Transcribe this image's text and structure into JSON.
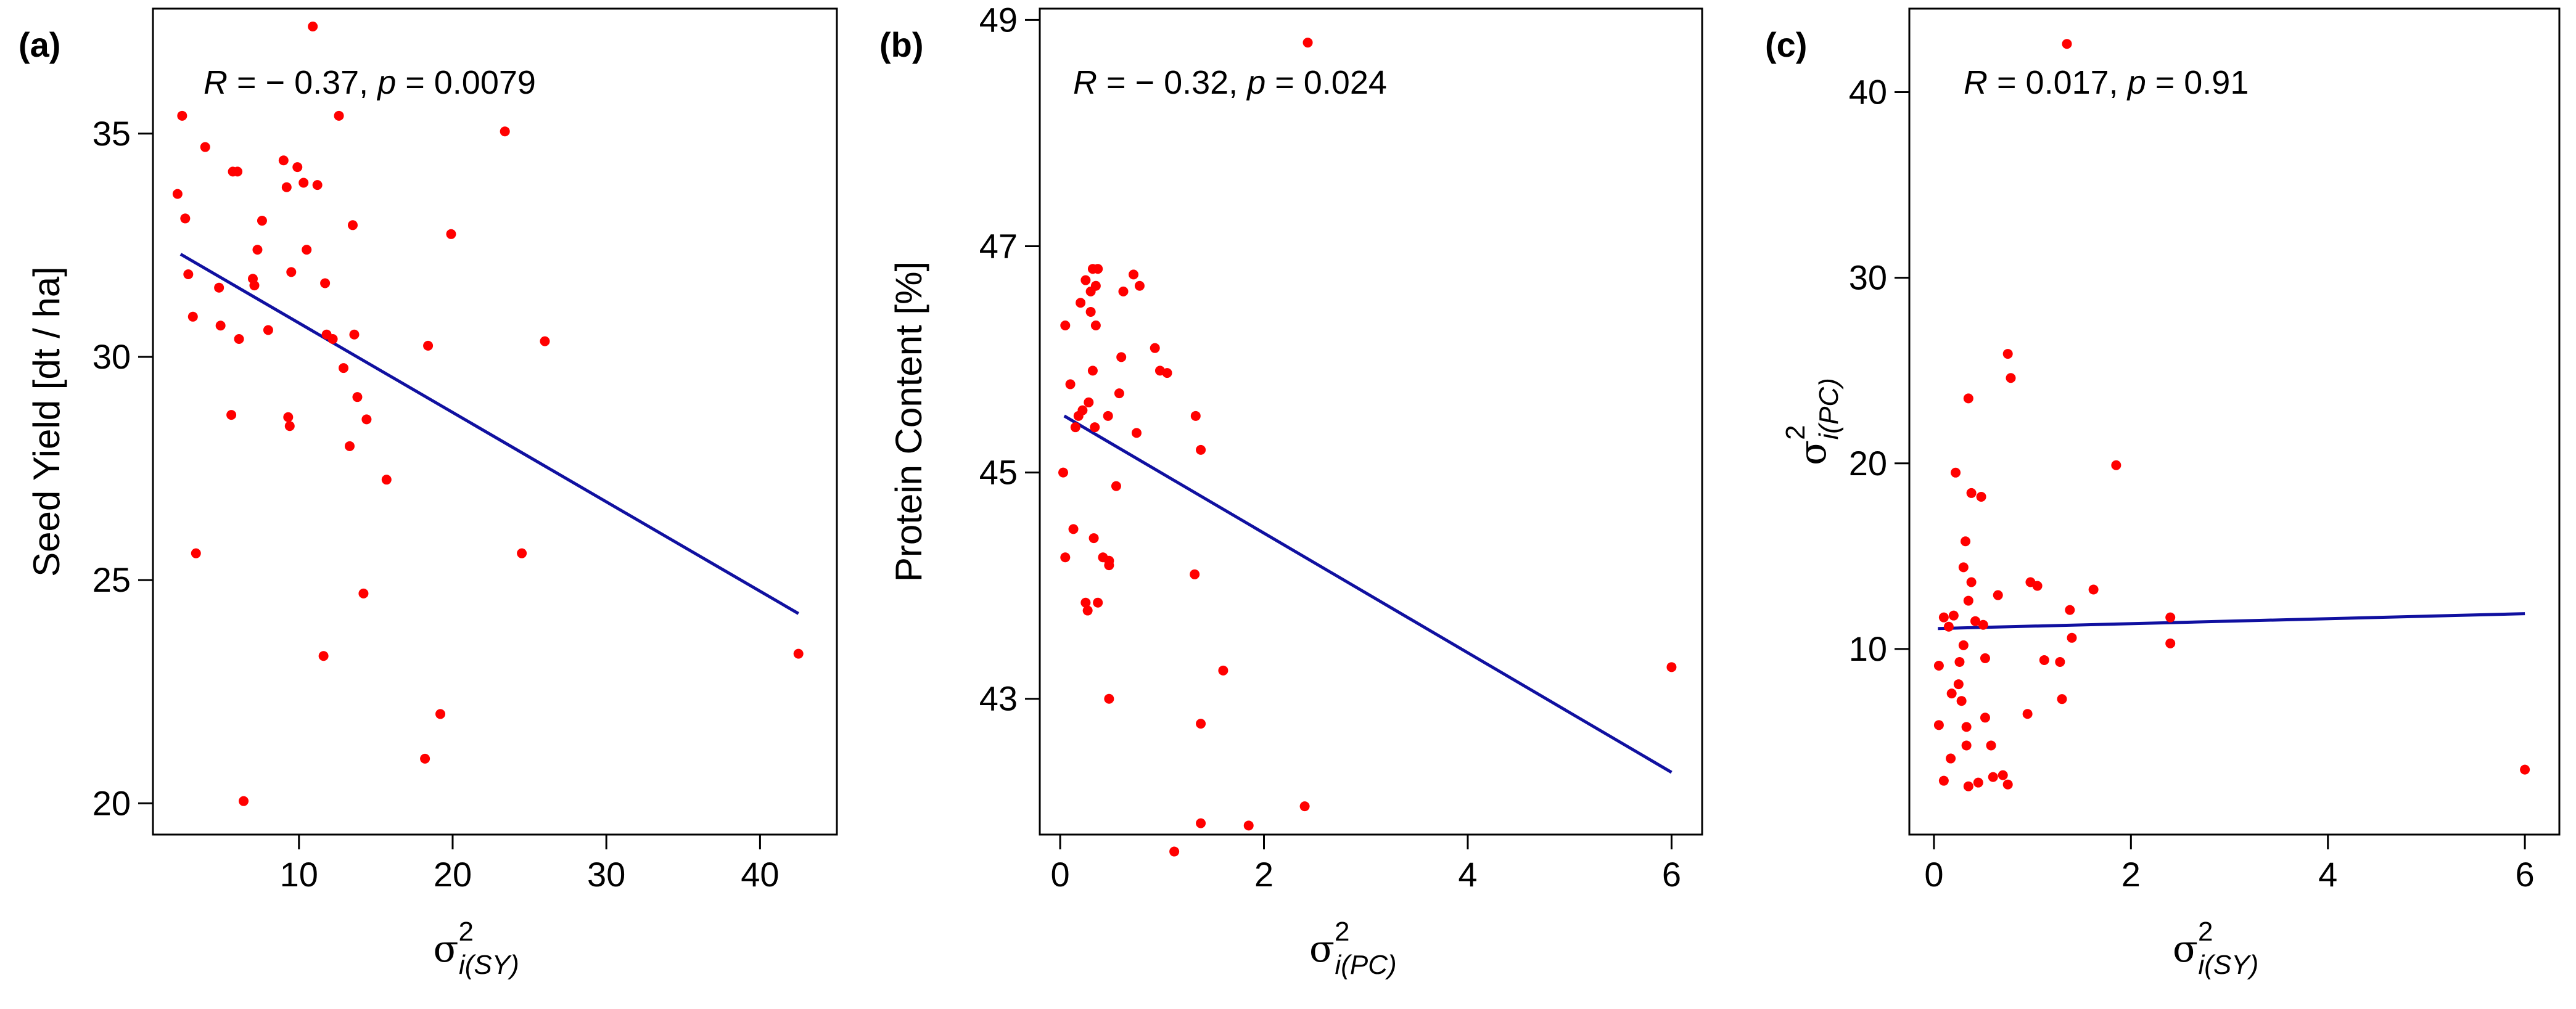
{
  "chart_data": [
    {
      "type": "scatter",
      "panel_label": "(a)",
      "xlabel": {
        "symbol": "σ",
        "sup": "2",
        "sub": "i(SY)"
      },
      "ylabel": {
        "text": "Seed Yield [dt / ha]"
      },
      "xlim": [
        0.5,
        45
      ],
      "ylim": [
        19.3,
        37.8
      ],
      "xticks": [
        10,
        20,
        30,
        40
      ],
      "yticks": [
        20,
        25,
        30,
        35
      ],
      "point_color": "#ff0000",
      "line_color": "#1010a0",
      "annotation": {
        "r_label": "R",
        "r_value": " = − 0.37, ",
        "p_label": "p",
        "p_value": " = 0.0079"
      },
      "regression": {
        "x": [
          2.3,
          42.5
        ],
        "y": [
          32.3,
          24.25
        ]
      },
      "points": [
        [
          2.1,
          33.65
        ],
        [
          2.4,
          35.4
        ],
        [
          2.6,
          33.1
        ],
        [
          2.8,
          31.85
        ],
        [
          3.1,
          30.9
        ],
        [
          3.3,
          25.6
        ],
        [
          3.9,
          34.7
        ],
        [
          4.8,
          31.55
        ],
        [
          4.9,
          30.7
        ],
        [
          5.6,
          28.7
        ],
        [
          5.7,
          34.15
        ],
        [
          6.0,
          34.15
        ],
        [
          6.1,
          30.4
        ],
        [
          6.4,
          20.05
        ],
        [
          7.0,
          31.75
        ],
        [
          7.1,
          31.6
        ],
        [
          7.3,
          32.4
        ],
        [
          7.6,
          33.05
        ],
        [
          8.0,
          30.6
        ],
        [
          9.0,
          34.4
        ],
        [
          9.2,
          33.8
        ],
        [
          9.3,
          28.65
        ],
        [
          9.4,
          28.45
        ],
        [
          9.5,
          31.9
        ],
        [
          9.9,
          34.25
        ],
        [
          10.3,
          33.9
        ],
        [
          10.5,
          32.4
        ],
        [
          10.9,
          37.4
        ],
        [
          11.2,
          33.85
        ],
        [
          11.6,
          23.3
        ],
        [
          11.7,
          31.65
        ],
        [
          11.8,
          30.5
        ],
        [
          12.2,
          30.4
        ],
        [
          12.6,
          35.4
        ],
        [
          12.9,
          29.75
        ],
        [
          13.3,
          28.0
        ],
        [
          13.5,
          32.95
        ],
        [
          13.6,
          30.5
        ],
        [
          13.8,
          29.1
        ],
        [
          14.2,
          24.7
        ],
        [
          14.4,
          28.6
        ],
        [
          15.7,
          27.25
        ],
        [
          18.2,
          21.0
        ],
        [
          18.4,
          30.25
        ],
        [
          19.2,
          22.0
        ],
        [
          19.9,
          32.75
        ],
        [
          23.4,
          35.05
        ],
        [
          24.5,
          25.6
        ],
        [
          26.0,
          30.35
        ],
        [
          42.5,
          23.35
        ]
      ]
    },
    {
      "type": "scatter",
      "panel_label": "(b)",
      "xlabel": {
        "symbol": "σ",
        "sup": "2",
        "sub": "i(PC)"
      },
      "ylabel": {
        "text": "Protein Content [%]"
      },
      "xlim": [
        -0.2,
        6.3
      ],
      "ylim": [
        41.8,
        49.1
      ],
      "xticks": [
        0,
        2,
        4,
        6
      ],
      "yticks": [
        43,
        45,
        47,
        49
      ],
      "point_color": "#ff0000",
      "line_color": "#1010a0",
      "annotation": {
        "r_label": "R",
        "r_value": " = − 0.32, ",
        "p_label": "p",
        "p_value": " = 0.024"
      },
      "regression": {
        "x": [
          0.04,
          6.0
        ],
        "y": [
          45.5,
          42.35
        ]
      },
      "points": [
        [
          0.03,
          45.0
        ],
        [
          0.05,
          44.25
        ],
        [
          0.05,
          46.3
        ],
        [
          0.1,
          45.78
        ],
        [
          0.13,
          44.5
        ],
        [
          0.15,
          45.4
        ],
        [
          0.18,
          45.5
        ],
        [
          0.2,
          46.5
        ],
        [
          0.22,
          45.55
        ],
        [
          0.25,
          46.7
        ],
        [
          0.25,
          43.85
        ],
        [
          0.27,
          43.78
        ],
        [
          0.28,
          45.62
        ],
        [
          0.3,
          46.42
        ],
        [
          0.3,
          46.6
        ],
        [
          0.32,
          46.8
        ],
        [
          0.32,
          45.9
        ],
        [
          0.33,
          44.42
        ],
        [
          0.34,
          45.4
        ],
        [
          0.35,
          46.65
        ],
        [
          0.35,
          46.3
        ],
        [
          0.37,
          46.8
        ],
        [
          0.37,
          43.85
        ],
        [
          0.42,
          44.25
        ],
        [
          0.47,
          45.5
        ],
        [
          0.48,
          44.18
        ],
        [
          0.48,
          44.22
        ],
        [
          0.48,
          43.0
        ],
        [
          0.55,
          44.88
        ],
        [
          0.58,
          45.7
        ],
        [
          0.6,
          46.02
        ],
        [
          0.62,
          46.6
        ],
        [
          0.72,
          46.75
        ],
        [
          0.75,
          45.35
        ],
        [
          0.78,
          46.65
        ],
        [
          0.93,
          46.1
        ],
        [
          0.98,
          45.9
        ],
        [
          1.05,
          45.88
        ],
        [
          1.12,
          41.65
        ],
        [
          1.32,
          44.1
        ],
        [
          1.33,
          45.5
        ],
        [
          1.38,
          45.2
        ],
        [
          1.38,
          42.78
        ],
        [
          1.38,
          41.9
        ],
        [
          1.6,
          43.25
        ],
        [
          1.85,
          41.88
        ],
        [
          2.4,
          42.05
        ],
        [
          2.43,
          48.8
        ],
        [
          6.0,
          43.28
        ]
      ]
    },
    {
      "type": "scatter",
      "panel_label": "(c)",
      "xlabel": {
        "symbol": "σ",
        "sup": "2",
        "sub": "i(SY)"
      },
      "ylabel": {
        "symbol": "σ",
        "sup": "2",
        "sub": "i(PC)"
      },
      "xlim": [
        -0.25,
        6.35
      ],
      "ylim": [
        0,
        44.5
      ],
      "xticks": [
        0,
        2,
        4,
        6
      ],
      "yticks": [
        10,
        20,
        30,
        40
      ],
      "point_color": "#ff0000",
      "line_color": "#1010a0",
      "annotation": {
        "r_label": "R",
        "r_value": " = 0.017, ",
        "p_label": "p",
        "p_value": " = 0.91"
      },
      "regression": {
        "x": [
          0.04,
          6.0
        ],
        "y": [
          11.1,
          11.9
        ]
      },
      "points": [
        [
          0.05,
          9.1
        ],
        [
          0.05,
          5.9
        ],
        [
          0.1,
          11.7
        ],
        [
          0.1,
          2.9
        ],
        [
          0.15,
          11.2
        ],
        [
          0.17,
          4.1
        ],
        [
          0.18,
          7.6
        ],
        [
          0.2,
          11.8
        ],
        [
          0.22,
          19.5
        ],
        [
          0.25,
          8.1
        ],
        [
          0.26,
          9.3
        ],
        [
          0.28,
          7.2
        ],
        [
          0.3,
          14.4
        ],
        [
          0.3,
          10.2
        ],
        [
          0.32,
          15.8
        ],
        [
          0.33,
          5.8
        ],
        [
          0.33,
          4.8
        ],
        [
          0.35,
          23.5
        ],
        [
          0.35,
          12.6
        ],
        [
          0.35,
          2.6
        ],
        [
          0.38,
          18.4
        ],
        [
          0.38,
          13.6
        ],
        [
          0.42,
          11.5
        ],
        [
          0.45,
          2.8
        ],
        [
          0.48,
          18.2
        ],
        [
          0.5,
          11.3
        ],
        [
          0.52,
          9.5
        ],
        [
          0.52,
          6.3
        ],
        [
          0.58,
          4.8
        ],
        [
          0.6,
          3.1
        ],
        [
          0.65,
          12.9
        ],
        [
          0.7,
          3.2
        ],
        [
          0.75,
          25.9
        ],
        [
          0.75,
          2.7
        ],
        [
          0.78,
          24.6
        ],
        [
          0.95,
          6.5
        ],
        [
          0.98,
          13.6
        ],
        [
          1.05,
          13.4
        ],
        [
          1.12,
          9.4
        ],
        [
          1.28,
          9.3
        ],
        [
          1.3,
          7.3
        ],
        [
          1.35,
          42.6
        ],
        [
          1.38,
          12.1
        ],
        [
          1.4,
          10.6
        ],
        [
          1.62,
          13.2
        ],
        [
          1.85,
          19.9
        ],
        [
          2.4,
          11.7
        ],
        [
          2.4,
          10.3
        ],
        [
          6.0,
          3.5
        ]
      ]
    }
  ]
}
